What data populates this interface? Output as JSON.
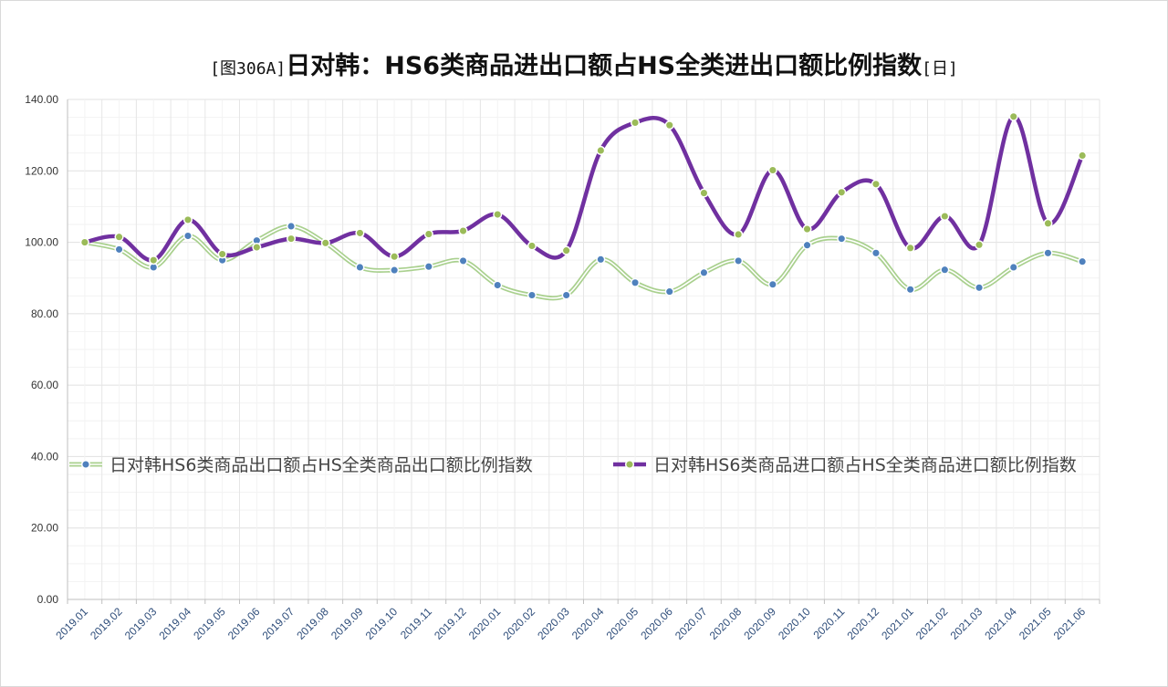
{
  "chart_data": {
    "type": "line",
    "title": {
      "prefix": "[图306A]",
      "main": "日对韩：HS6类商品进出口额占HS全类进出口额比例指数",
      "suffix": "[日]"
    },
    "xlabel": "",
    "ylabel": "",
    "ylim": [
      0,
      140
    ],
    "yticks": [
      "0.00",
      "20.00",
      "40.00",
      "60.00",
      "80.00",
      "100.00",
      "120.00",
      "140.00"
    ],
    "grid": true,
    "legend_position": "middle",
    "categories": [
      "2019.01",
      "2019.02",
      "2019.03",
      "2019.04",
      "2019.05",
      "2019.06",
      "2019.07",
      "2019.08",
      "2019.09",
      "2019.10",
      "2019.11",
      "2019.12",
      "2020.01",
      "2020.02",
      "2020.03",
      "2020.04",
      "2020.05",
      "2020.06",
      "2020.07",
      "2020.08",
      "2020.09",
      "2020.10",
      "2020.11",
      "2020.12",
      "2021.01",
      "2021.02",
      "2021.03",
      "2021.04",
      "2021.05",
      "2021.06"
    ],
    "series": [
      {
        "name": "日对韩HS6类商品出口额占HS全类商品出口额比例指数",
        "line_color": "#a9d08e",
        "marker_color": "#4f81bd",
        "values": [
          100.0,
          98.0,
          93.0,
          101.8,
          95.0,
          100.5,
          104.5,
          99.8,
          93.0,
          92.2,
          93.2,
          94.8,
          88.0,
          85.2,
          85.2,
          95.2,
          88.7,
          86.2,
          91.5,
          94.8,
          88.2,
          99.2,
          101.0,
          97.0,
          86.8,
          92.3,
          87.3,
          93.0,
          97.0,
          94.6
        ]
      },
      {
        "name": "日对韩HS6类商品进口额占HS全类商品进口额比例指数",
        "line_color": "#7030a0",
        "marker_color": "#9bbb59",
        "values": [
          100.0,
          101.5,
          95.0,
          106.3,
          96.7,
          98.6,
          101.0,
          99.8,
          102.6,
          96.0,
          102.3,
          103.2,
          107.8,
          99.0,
          97.7,
          125.7,
          133.5,
          132.8,
          113.8,
          102.2,
          120.2,
          103.7,
          114.0,
          116.3,
          98.4,
          107.3,
          99.3,
          135.2,
          105.3,
          124.3
        ]
      }
    ]
  },
  "colors": {
    "grid": "#e8e8e8",
    "axis": "#bfbfbf"
  }
}
